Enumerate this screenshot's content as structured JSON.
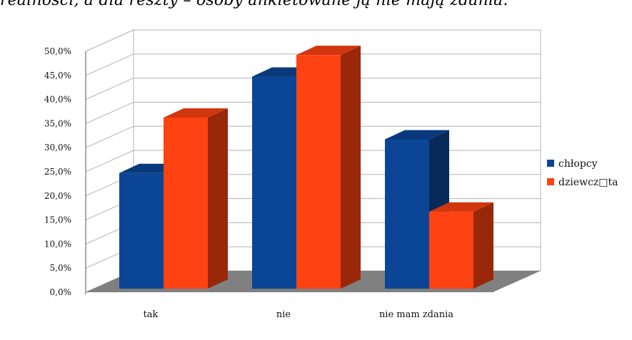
{
  "caption": "realności, a dla reszty – osoby ankietowane ją nie mają zdania.",
  "chart_data": {
    "type": "bar",
    "categories": [
      "tak",
      "nie",
      "nie mam zdania"
    ],
    "series": [
      {
        "name": "chłopcy",
        "values": [
          24.0,
          44.0,
          31.0
        ],
        "color": "#0b4696"
      },
      {
        "name": "dziewcz□ta",
        "values": [
          35.5,
          48.5,
          16.0
        ],
        "color": "#ff4212"
      }
    ],
    "yticks": [
      "0,0%",
      "5,0%",
      "10,0%",
      "15,0%",
      "20,0%",
      "25,0%",
      "30,0%",
      "35,0%",
      "40,0%",
      "45,0%",
      "50,0%"
    ],
    "ylim": [
      0,
      50
    ],
    "grid": true,
    "legend": "right",
    "wall_color": "#ffffff",
    "floor_color": "#808080",
    "gridline_color": "#b3b3b3"
  }
}
